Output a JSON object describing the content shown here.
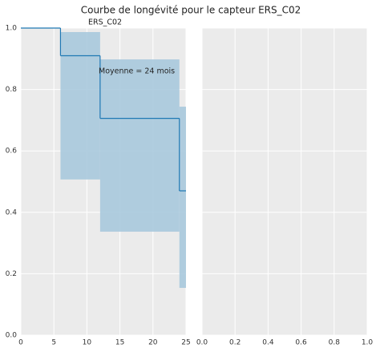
{
  "chart_data": [
    {
      "type": "step",
      "title": "Courbe de longévité pour le capteur ERS_C02",
      "x": [
        0,
        6,
        12,
        24
      ],
      "series": [
        {
          "name": "ERS_C02",
          "color": "#1f78b4",
          "band_color": "#a9c9dd",
          "values": [
            1,
            0.91,
            0.706,
            0.47
          ],
          "upper": [
            1,
            0.987,
            0.898,
            0.744
          ],
          "lower": [
            1,
            0.507,
            0.337,
            0.154
          ]
        }
      ],
      "annotation": "Moyenne = 24 mois",
      "xlim": [
        0,
        25
      ],
      "xticks": [
        0,
        5,
        10,
        15,
        20,
        25
      ],
      "ylim": [
        0,
        1
      ],
      "yticks": [
        {
          "value": 0,
          "label": "0.0"
        },
        0.2,
        0.4,
        0.6,
        0.8,
        {
          "value": 1,
          "label": "1.0"
        }
      ],
      "grid": true
    },
    {
      "type": "empty",
      "xlim": [
        0,
        1
      ],
      "xticks": [
        {
          "value": 0,
          "label": "0.0"
        },
        0.2,
        0.4,
        0.6,
        0.8,
        {
          "value": 1,
          "label": "1.0"
        }
      ],
      "ylim": [
        0,
        1
      ],
      "yticks": [
        0,
        0.2,
        0.4,
        0.6,
        0.8,
        1
      ],
      "grid": true
    }
  ]
}
